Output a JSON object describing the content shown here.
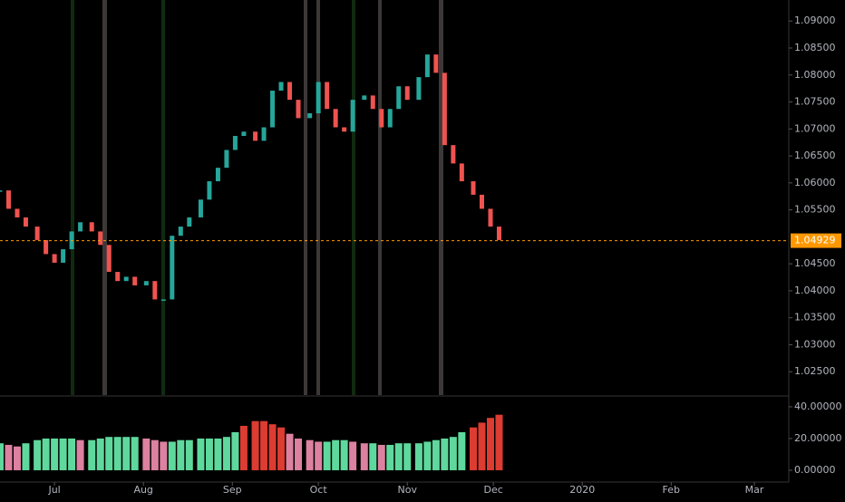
{
  "chart_data": {
    "type": "candles",
    "x": [
      0,
      3,
      6,
      9,
      13,
      16,
      19,
      22,
      25,
      28,
      32,
      35,
      38,
      41,
      44,
      47,
      51,
      54,
      57,
      60,
      63,
      66,
      70,
      73,
      76,
      79,
      82,
      85,
      89,
      92,
      95,
      98,
      101,
      104,
      108,
      111,
      114,
      117,
      120,
      123,
      127,
      130,
      133,
      136,
      139,
      142,
      146,
      149,
      152,
      155,
      158,
      161,
      165,
      168,
      171,
      174
    ],
    "values": [
      1.0586,
      1.0552,
      1.0536,
      1.0519,
      1.0494,
      1.0468,
      1.0452,
      1.0477,
      1.051,
      1.0527,
      1.051,
      1.0485,
      1.0435,
      1.0418,
      1.0426,
      1.041,
      1.0418,
      1.0384,
      1.0384,
      1.0502,
      1.0519,
      1.0536,
      1.0569,
      1.0603,
      1.0628,
      1.0661,
      1.0687,
      1.0695,
      1.0678,
      1.0703,
      1.0771,
      1.0787,
      1.0754,
      1.072,
      1.0729,
      1.0787,
      1.0737,
      1.0703,
      1.0695,
      1.0754,
      1.0762,
      1.0737,
      1.0703,
      1.0737,
      1.0779,
      1.0754,
      1.0796,
      1.0838,
      1.0804,
      1.067,
      1.0636,
      1.0603,
      1.0578,
      1.0552,
      1.0519,
      1.0494
    ],
    "up_color": "#26a69a",
    "down_color": "#ef5350",
    "xlim": [
      0,
      275
    ],
    "xticks": [
      {
        "value": 19,
        "label": "Jul"
      },
      {
        "value": 50,
        "label": "Aug"
      },
      {
        "value": 81,
        "label": "Sep"
      },
      {
        "value": 111,
        "label": "Oct"
      },
      {
        "value": 142,
        "label": "Nov"
      },
      {
        "value": 172,
        "label": "Dec"
      },
      {
        "value": 203,
        "label": "2020"
      },
      {
        "value": 234,
        "label": "Feb"
      },
      {
        "value": 263,
        "label": "Mar"
      }
    ],
    "ylim": [
      1.0205,
      1.0939
    ],
    "yticks": [
      {
        "value": 1.09,
        "label": "1.09000"
      },
      {
        "value": 1.085,
        "label": "1.08500"
      },
      {
        "value": 1.08,
        "label": "1.08000"
      },
      {
        "value": 1.075,
        "label": "1.07500"
      },
      {
        "value": 1.07,
        "label": "1.07000"
      },
      {
        "value": 1.065,
        "label": "1.06500"
      },
      {
        "value": 1.06,
        "label": "1.06000"
      },
      {
        "value": 1.055,
        "label": "1.05500"
      },
      {
        "value": 1.045,
        "label": "1.04500"
      },
      {
        "value": 1.04,
        "label": "1.04000"
      },
      {
        "value": 1.035,
        "label": "1.03500"
      },
      {
        "value": 1.03,
        "label": "1.03000"
      },
      {
        "value": 1.025,
        "label": "1.02500"
      }
    ],
    "last_price": {
      "value": 1.04929,
      "label": "1.04929"
    },
    "last_price_color": "#ff9800",
    "indicator": {
      "values": [
        17,
        16,
        15,
        17,
        19,
        20,
        20,
        20,
        20,
        19,
        19,
        20,
        21,
        21,
        21,
        21,
        20,
        19,
        18,
        18,
        19,
        19,
        20,
        20,
        20,
        21,
        24,
        28,
        31,
        31,
        29,
        27,
        23,
        20,
        19,
        18,
        18,
        19,
        19,
        18,
        17,
        17,
        16,
        16,
        17,
        17,
        17,
        18,
        19,
        20,
        21,
        24,
        27,
        30,
        33,
        35
      ],
      "ylim": [
        -6.3,
        45.1
      ],
      "yticks": [
        {
          "value": 40,
          "label": "40.00000"
        },
        {
          "value": 20,
          "label": "20.00000"
        },
        {
          "value": 0,
          "label": "0.00000"
        }
      ],
      "colors": [
        "#69f0ae",
        "#f48fb1",
        "#f44336"
      ]
    }
  }
}
